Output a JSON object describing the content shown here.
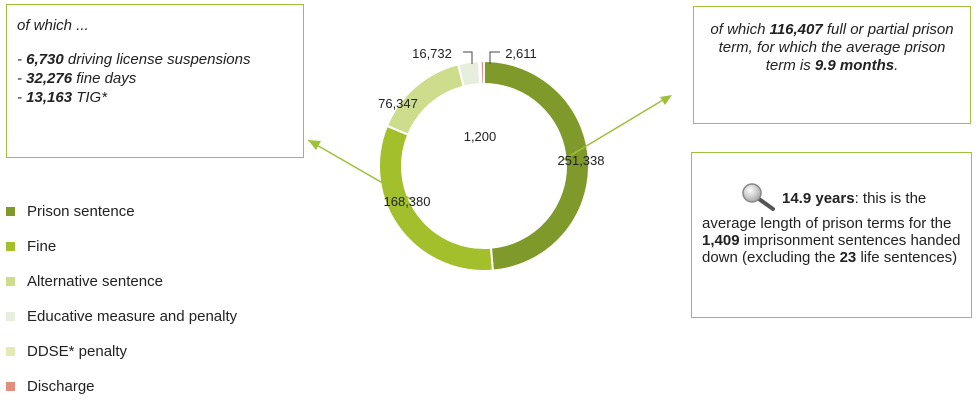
{
  "chart_data": {
    "type": "pie",
    "categories": [
      "Prison sentence",
      "Fine",
      "Alternative sentence",
      "Educative measure and penalty",
      "DDSE* penalty",
      "Discharge"
    ],
    "values": [
      251338,
      168380,
      76347,
      16732,
      1200,
      2611
    ],
    "value_labels": [
      "251,338",
      "168,380",
      "76,347",
      "16,732",
      "1,200",
      "2,611"
    ],
    "colors": [
      "#7f9a2a",
      "#a3bf2c",
      "#cedd8c",
      "#e8eedd",
      "#e4eab4",
      "#e38d7c"
    ],
    "legend_position": "left"
  },
  "left_box": {
    "intro": "of which ...",
    "items": [
      {
        "prefix": "- ",
        "value": "6,730",
        "text": " driving license suspensions"
      },
      {
        "prefix": "- ",
        "value": "32,276",
        "text": " fine days"
      },
      {
        "prefix": "- ",
        "value": "13,163",
        "text": " TIG*"
      }
    ]
  },
  "right_top_box": {
    "part1": "of which ",
    "value1": "116,407",
    "part2": " full or partial prison term, for which the average prison term is ",
    "value2": "9.9 months",
    "part3": "."
  },
  "right_bottom_box": {
    "icon": "magnifier-icon",
    "value1": "14.9 years",
    "part1": ": this is the average length of prison terms for the ",
    "value2": "1,409",
    "part2": " imprisonment sentences handed down (excluding the ",
    "value3": "23",
    "part3": " life sentences)"
  }
}
